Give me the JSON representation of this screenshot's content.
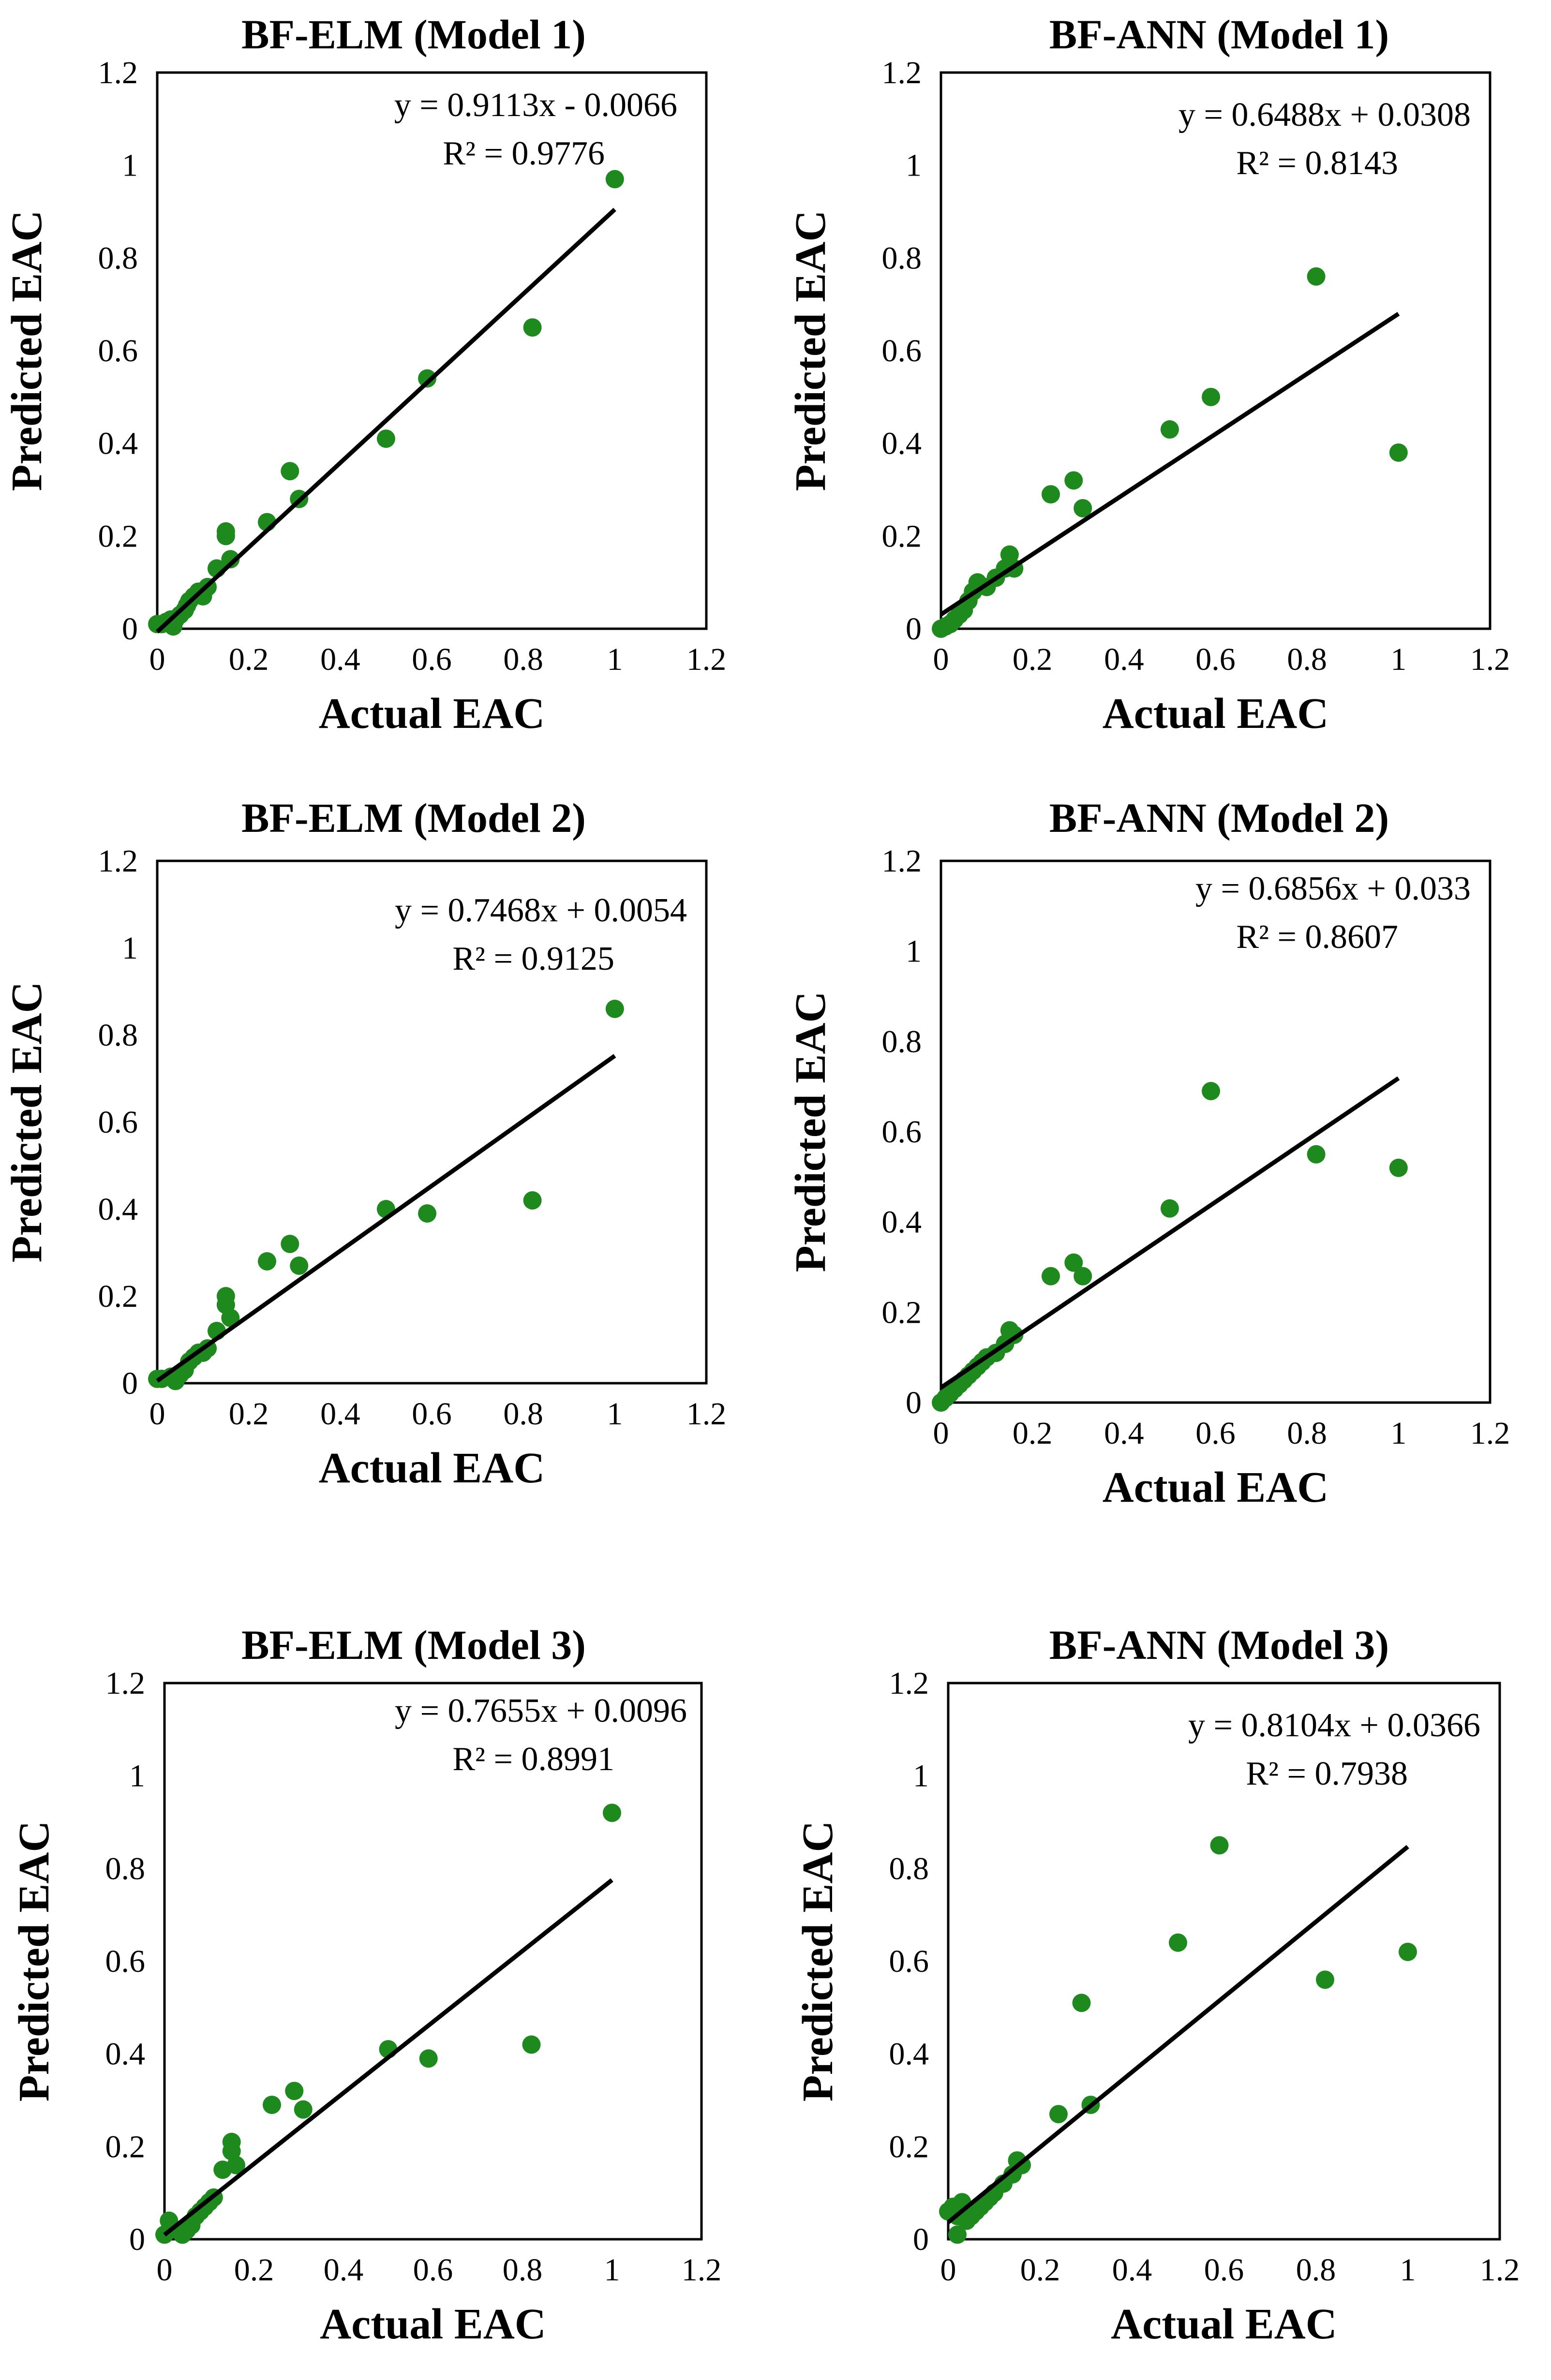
{
  "chart_data": [
    {
      "type": "scatter",
      "title": "BF-ELM (Model 1)",
      "xlabel": "Actual EAC",
      "ylabel": "Predicted EAC",
      "xlim": [
        0,
        1.2
      ],
      "ylim": [
        0,
        1.2
      ],
      "xticks": [
        "0",
        "0.2",
        "0.4",
        "0.6",
        "0.8",
        "1",
        "1.2"
      ],
      "yticks": [
        "0",
        "0.2",
        "0.4",
        "0.6",
        "0.8",
        "1",
        "1.2"
      ],
      "equation": "y = 0.9113x - 0.0066",
      "r2": "R² = 0.9776",
      "trendline": {
        "slope": 0.9113,
        "intercept": -0.0066
      },
      "points": [
        [
          0.0,
          0.01
        ],
        [
          0.01,
          0.01
        ],
        [
          0.02,
          0.015
        ],
        [
          0.03,
          0.02
        ],
        [
          0.035,
          0.005
        ],
        [
          0.04,
          0.02
        ],
        [
          0.05,
          0.03
        ],
        [
          0.06,
          0.04
        ],
        [
          0.065,
          0.05
        ],
        [
          0.07,
          0.06
        ],
        [
          0.08,
          0.07
        ],
        [
          0.09,
          0.08
        ],
        [
          0.1,
          0.07
        ],
        [
          0.11,
          0.09
        ],
        [
          0.13,
          0.13
        ],
        [
          0.15,
          0.21
        ],
        [
          0.15,
          0.2
        ],
        [
          0.16,
          0.15
        ],
        [
          0.24,
          0.23
        ],
        [
          0.29,
          0.34
        ],
        [
          0.31,
          0.28
        ],
        [
          0.5,
          0.41
        ],
        [
          0.59,
          0.54
        ],
        [
          0.82,
          0.65
        ],
        [
          1.0,
          0.97
        ]
      ]
    },
    {
      "type": "scatter",
      "title": "BF-ANN (Model 1)",
      "xlabel": "Actual EAC",
      "ylabel": "Predicted EAC",
      "xlim": [
        0,
        1.2
      ],
      "ylim": [
        0,
        1.2
      ],
      "xticks": [
        "0",
        "0.2",
        "0.4",
        "0.6",
        "0.8",
        "1",
        "1.2"
      ],
      "yticks": [
        "0",
        "0.2",
        "0.4",
        "0.6",
        "0.8",
        "1",
        "1.2"
      ],
      "equation": "y = 0.6488x + 0.0308",
      "r2": "R² = 0.8143",
      "trendline": {
        "slope": 0.6488,
        "intercept": 0.0308
      },
      "points": [
        [
          0.0,
          0.0
        ],
        [
          0.01,
          0.005
        ],
        [
          0.02,
          0.01
        ],
        [
          0.03,
          0.02
        ],
        [
          0.04,
          0.03
        ],
        [
          0.05,
          0.04
        ],
        [
          0.06,
          0.06
        ],
        [
          0.07,
          0.08
        ],
        [
          0.08,
          0.1
        ],
        [
          0.1,
          0.09
        ],
        [
          0.12,
          0.11
        ],
        [
          0.14,
          0.13
        ],
        [
          0.15,
          0.16
        ],
        [
          0.16,
          0.13
        ],
        [
          0.24,
          0.29
        ],
        [
          0.29,
          0.32
        ],
        [
          0.31,
          0.26
        ],
        [
          0.5,
          0.43
        ],
        [
          0.59,
          0.5
        ],
        [
          0.82,
          0.76
        ],
        [
          1.0,
          0.38
        ]
      ]
    },
    {
      "type": "scatter",
      "title": "BF-ELM (Model 2)",
      "xlabel": "Actual EAC",
      "ylabel": "Predicted EAC",
      "xlim": [
        0,
        1.2
      ],
      "ylim": [
        0,
        1.2
      ],
      "xticks": [
        "0",
        "0.2",
        "0.4",
        "0.6",
        "0.8",
        "1",
        "1.2"
      ],
      "yticks": [
        "0",
        "0.2",
        "0.4",
        "0.6",
        "0.8",
        "1",
        "1.2"
      ],
      "equation": "y = 0.7468x + 0.0054",
      "r2": "R² = 0.9125",
      "trendline": {
        "slope": 0.7468,
        "intercept": 0.0054
      },
      "points": [
        [
          0.0,
          0.01
        ],
        [
          0.01,
          0.01
        ],
        [
          0.03,
          0.015
        ],
        [
          0.04,
          0.005
        ],
        [
          0.05,
          0.02
        ],
        [
          0.06,
          0.03
        ],
        [
          0.07,
          0.05
        ],
        [
          0.08,
          0.06
        ],
        [
          0.09,
          0.07
        ],
        [
          0.1,
          0.07
        ],
        [
          0.11,
          0.08
        ],
        [
          0.13,
          0.12
        ],
        [
          0.15,
          0.2
        ],
        [
          0.15,
          0.18
        ],
        [
          0.16,
          0.15
        ],
        [
          0.24,
          0.28
        ],
        [
          0.29,
          0.32
        ],
        [
          0.31,
          0.27
        ],
        [
          0.5,
          0.4
        ],
        [
          0.59,
          0.39
        ],
        [
          0.82,
          0.42
        ],
        [
          1.0,
          0.86
        ]
      ]
    },
    {
      "type": "scatter",
      "title": "BF-ANN (Model 2)",
      "xlabel": "Actual EAC",
      "ylabel": "Predicted EAC",
      "xlim": [
        0,
        1.2
      ],
      "ylim": [
        0,
        1.2
      ],
      "xticks": [
        "0",
        "0.2",
        "0.4",
        "0.6",
        "0.8",
        "1",
        "1.2"
      ],
      "yticks": [
        "0",
        "0.2",
        "0.4",
        "0.6",
        "0.8",
        "1",
        "1.2"
      ],
      "equation": "y = 0.6856x + 0.033",
      "r2": "R² = 0.8607",
      "trendline": {
        "slope": 0.6856,
        "intercept": 0.033
      },
      "points": [
        [
          0.0,
          0.0
        ],
        [
          0.01,
          0.01
        ],
        [
          0.02,
          0.02
        ],
        [
          0.03,
          0.03
        ],
        [
          0.04,
          0.04
        ],
        [
          0.05,
          0.05
        ],
        [
          0.06,
          0.06
        ],
        [
          0.07,
          0.07
        ],
        [
          0.08,
          0.08
        ],
        [
          0.09,
          0.09
        ],
        [
          0.1,
          0.1
        ],
        [
          0.12,
          0.11
        ],
        [
          0.14,
          0.13
        ],
        [
          0.15,
          0.16
        ],
        [
          0.16,
          0.15
        ],
        [
          0.24,
          0.28
        ],
        [
          0.29,
          0.31
        ],
        [
          0.31,
          0.28
        ],
        [
          0.5,
          0.43
        ],
        [
          0.59,
          0.69
        ],
        [
          0.82,
          0.55
        ],
        [
          1.0,
          0.52
        ]
      ]
    },
    {
      "type": "scatter",
      "title": "BF-ELM (Model 3)",
      "xlabel": "Actual EAC",
      "ylabel": "Predicted EAC",
      "xlim": [
        0,
        1.2
      ],
      "ylim": [
        0,
        1.2
      ],
      "xticks": [
        "0",
        "0.2",
        "0.4",
        "0.6",
        "0.8",
        "1",
        "1.2"
      ],
      "yticks": [
        "0",
        "0.2",
        "0.4",
        "0.6",
        "0.8",
        "1",
        "1.2"
      ],
      "equation": "y = 0.7655x + 0.0096",
      "r2": "R² = 0.8991",
      "trendline": {
        "slope": 0.7655,
        "intercept": 0.0096
      },
      "points": [
        [
          0.0,
          0.01
        ],
        [
          0.01,
          0.04
        ],
        [
          0.03,
          0.02
        ],
        [
          0.04,
          0.01
        ],
        [
          0.05,
          0.02
        ],
        [
          0.06,
          0.03
        ],
        [
          0.07,
          0.05
        ],
        [
          0.08,
          0.06
        ],
        [
          0.09,
          0.07
        ],
        [
          0.1,
          0.08
        ],
        [
          0.11,
          0.09
        ],
        [
          0.13,
          0.15
        ],
        [
          0.15,
          0.21
        ],
        [
          0.15,
          0.19
        ],
        [
          0.16,
          0.16
        ],
        [
          0.24,
          0.29
        ],
        [
          0.29,
          0.32
        ],
        [
          0.31,
          0.28
        ],
        [
          0.5,
          0.41
        ],
        [
          0.59,
          0.39
        ],
        [
          0.82,
          0.42
        ],
        [
          1.0,
          0.92
        ]
      ]
    },
    {
      "type": "scatter",
      "title": "BF-ANN (Model 3)",
      "xlabel": "Actual EAC",
      "ylabel": "Predicted EAC",
      "xlim": [
        0,
        1.2
      ],
      "ylim": [
        0,
        1.2
      ],
      "xticks": [
        "0",
        "0.2",
        "0.4",
        "0.6",
        "0.8",
        "1",
        "1.2"
      ],
      "yticks": [
        "0",
        "0.2",
        "0.4",
        "0.6",
        "0.8",
        "1",
        "1.2"
      ],
      "equation": "y = 0.8104x + 0.0366",
      "r2": "R² = 0.7938",
      "trendline": {
        "slope": 0.8104,
        "intercept": 0.0366
      },
      "points": [
        [
          0.0,
          0.06
        ],
        [
          0.01,
          0.07
        ],
        [
          0.02,
          0.01
        ],
        [
          0.02,
          0.05
        ],
        [
          0.03,
          0.08
        ],
        [
          0.04,
          0.04
        ],
        [
          0.05,
          0.05
        ],
        [
          0.06,
          0.06
        ],
        [
          0.07,
          0.07
        ],
        [
          0.08,
          0.08
        ],
        [
          0.09,
          0.09
        ],
        [
          0.1,
          0.1
        ],
        [
          0.12,
          0.12
        ],
        [
          0.14,
          0.14
        ],
        [
          0.15,
          0.17
        ],
        [
          0.16,
          0.16
        ],
        [
          0.24,
          0.27
        ],
        [
          0.29,
          0.51
        ],
        [
          0.31,
          0.29
        ],
        [
          0.5,
          0.64
        ],
        [
          0.59,
          0.85
        ],
        [
          0.82,
          0.56
        ],
        [
          1.0,
          0.62
        ]
      ]
    }
  ],
  "colors": {
    "marker": "#1e8a1e",
    "trendline": "#000000",
    "axis": "#000000"
  }
}
